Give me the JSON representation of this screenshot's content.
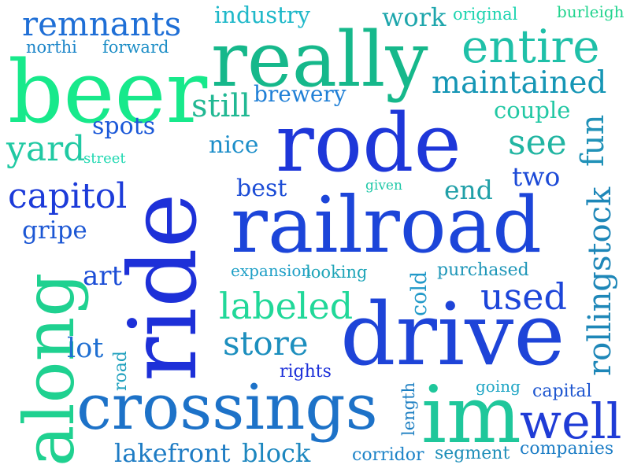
{
  "words": [
    {
      "text": "beer",
      "color": "#17e98b",
      "weight": 10
    },
    {
      "text": "remnants",
      "color": "#1f6fd6",
      "weight": 5
    },
    {
      "text": "northi",
      "color": "#1d86c9",
      "weight": 2
    },
    {
      "text": "forward",
      "color": "#1d8ec6",
      "weight": 2
    },
    {
      "text": "industry",
      "color": "#1fb8c9",
      "weight": 3
    },
    {
      "text": "really",
      "color": "#16b88b",
      "weight": 9
    },
    {
      "text": "work",
      "color": "#1ea6ac",
      "weight": 3
    },
    {
      "text": "original",
      "color": "#1ed4b0",
      "weight": 2
    },
    {
      "text": "burleigh",
      "color": "#22d48f",
      "weight": 2
    },
    {
      "text": "entire",
      "color": "#1fc0a8",
      "weight": 7
    },
    {
      "text": "maintained",
      "color": "#1696b5",
      "weight": 5
    },
    {
      "text": "brewery",
      "color": "#1f7fd6",
      "weight": 3
    },
    {
      "text": "still",
      "color": "#21b893",
      "weight": 5
    },
    {
      "text": "couple",
      "color": "#22c8a4",
      "weight": 3
    },
    {
      "text": "spots",
      "color": "#1b58d8",
      "weight": 3
    },
    {
      "text": "rode",
      "color": "#1e37d9",
      "weight": 10
    },
    {
      "text": "yard",
      "color": "#20c9a3",
      "weight": 5
    },
    {
      "text": "street",
      "color": "#20d8b1",
      "weight": 1
    },
    {
      "text": "nice",
      "color": "#1c8ec9",
      "weight": 3
    },
    {
      "text": "see",
      "color": "#21b5a2",
      "weight": 5
    },
    {
      "text": "fun",
      "color": "#2192b8",
      "weight": 4
    },
    {
      "text": "capitol",
      "color": "#1c3bd9",
      "weight": 5
    },
    {
      "text": "ride",
      "color": "#1d30d8",
      "weight": 10
    },
    {
      "text": "best",
      "color": "#1d4dd6",
      "weight": 3
    },
    {
      "text": "given",
      "color": "#20c8a8",
      "weight": 1
    },
    {
      "text": "end",
      "color": "#21a0a8",
      "weight": 3
    },
    {
      "text": "two",
      "color": "#1c4ad7",
      "weight": 3
    },
    {
      "text": "rollingstock",
      "color": "#1e87b8",
      "weight": 5
    },
    {
      "text": "railroad",
      "color": "#1c45d9",
      "weight": 10
    },
    {
      "text": "gripe",
      "color": "#1c57d4",
      "weight": 3
    },
    {
      "text": "art",
      "color": "#1b4dd6",
      "weight": 3
    },
    {
      "text": "expansion",
      "color": "#1e9fc6",
      "weight": 2
    },
    {
      "text": "looking",
      "color": "#1ea5b8",
      "weight": 2
    },
    {
      "text": "cold",
      "color": "#2199c8",
      "weight": 3
    },
    {
      "text": "purchased",
      "color": "#1e96b8",
      "weight": 2
    },
    {
      "text": "along",
      "color": "#1fd190",
      "weight": 9
    },
    {
      "text": "labeled",
      "color": "#21d899",
      "weight": 5
    },
    {
      "text": "used",
      "color": "#1c45d9",
      "weight": 4
    },
    {
      "text": "lot",
      "color": "#1f6fd2",
      "weight": 3
    },
    {
      "text": "road",
      "color": "#1fa0bd",
      "weight": 2
    },
    {
      "text": "store",
      "color": "#1d8fbe",
      "weight": 4
    },
    {
      "text": "drive",
      "color": "#1e44d8",
      "weight": 10
    },
    {
      "text": "rights",
      "color": "#1d30d9",
      "weight": 2
    },
    {
      "text": "going",
      "color": "#1ea5c4",
      "weight": 2
    },
    {
      "text": "capital",
      "color": "#1e56d0",
      "weight": 2
    },
    {
      "text": "crossings",
      "color": "#1d72c8",
      "weight": 9
    },
    {
      "text": "length",
      "color": "#1d7fc2",
      "weight": 2
    },
    {
      "text": "im",
      "color": "#1fc79b",
      "weight": 10
    },
    {
      "text": "well",
      "color": "#1f3cd6",
      "weight": 7
    },
    {
      "text": "lakefront",
      "color": "#1e7cc4",
      "weight": 4
    },
    {
      "text": "block",
      "color": "#1d87bf",
      "weight": 4
    },
    {
      "text": "corridor",
      "color": "#1e84c8",
      "weight": 2
    },
    {
      "text": "segment",
      "color": "#1f8fb9",
      "weight": 2
    },
    {
      "text": "companies",
      "color": "#1e7ec6",
      "weight": 2
    }
  ]
}
